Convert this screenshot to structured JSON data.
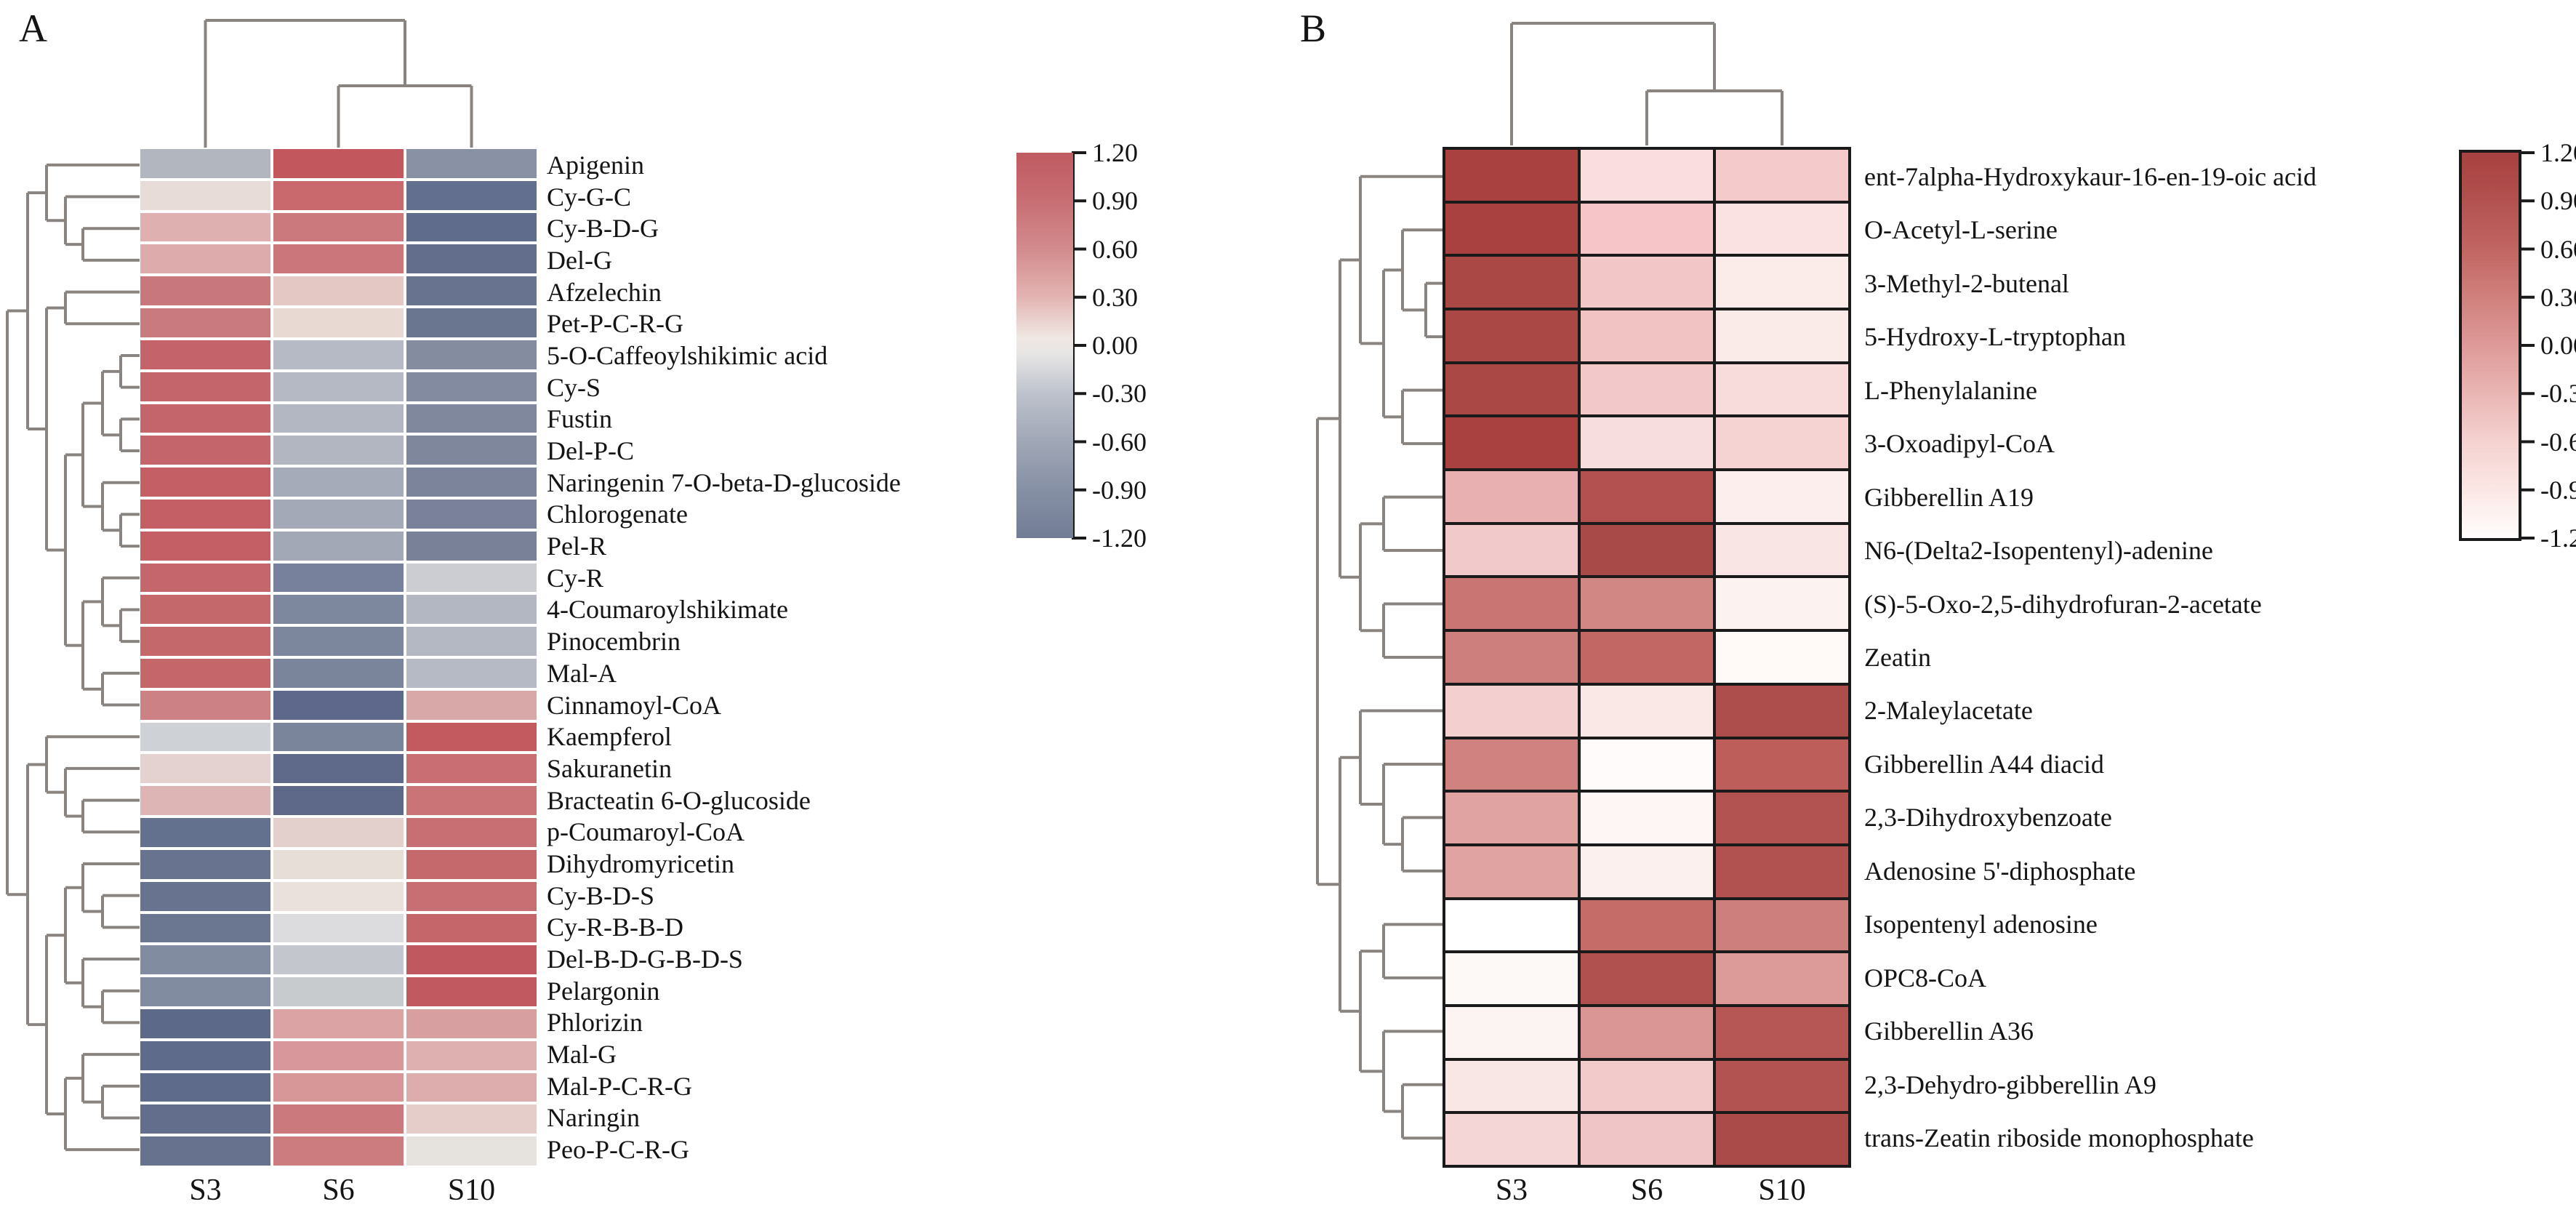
{
  "figure": {
    "background": "#ffffff",
    "text_color": "#141414",
    "dendrogram_color": "#8a8481",
    "panel_a_letter": "A",
    "panel_b_letter": "B"
  },
  "chart_data": [
    {
      "type": "heatmap",
      "panel_label": "A",
      "columns": [
        "S3",
        "S6",
        "S10"
      ],
      "rows": [
        "Apigenin",
        "Cy-G-C",
        "Cy-B-D-G",
        "Del-G",
        "Afzelechin",
        "Pet-P-C-R-G",
        "5-O-Caffeoylshikimic acid",
        "Cy-S",
        "Fustin",
        "Del-P-C",
        "Naringenin 7-O-beta-D-glucoside",
        "Chlorogenate",
        "Pel-R",
        "Cy-R",
        "4-Coumaroylshikimate",
        "Pinocembrin",
        "Mal-A",
        "Cinnamoyl-CoA",
        "Kaempferol",
        "Sakuranetin",
        "Bracteatin 6-O-glucoside",
        "p-Coumaroyl-CoA",
        "Dihydromyricetin",
        "Cy-B-D-S",
        "Cy-R-B-B-D",
        "Del-B-D-G-B-D-S",
        "Pelargonin",
        "Phlorizin",
        "Mal-G",
        "Mal-P-C-R-G",
        "Naringin",
        "Peo-P-C-R-G"
      ],
      "values": [
        [
          -0.45,
          1.15,
          -0.75
        ],
        [
          0.1,
          0.95,
          -1.1
        ],
        [
          0.45,
          0.7,
          -1.15
        ],
        [
          0.5,
          0.75,
          -1.1
        ],
        [
          0.75,
          0.25,
          -1.05
        ],
        [
          0.75,
          0.1,
          -1.0
        ],
        [
          1.0,
          -0.4,
          -0.8
        ],
        [
          1.0,
          -0.4,
          -0.8
        ],
        [
          1.0,
          -0.45,
          -0.75
        ],
        [
          1.0,
          -0.45,
          -0.75
        ],
        [
          1.05,
          -0.55,
          -0.7
        ],
        [
          1.05,
          -0.55,
          -0.7
        ],
        [
          1.05,
          -0.55,
          -0.7
        ],
        [
          1.0,
          -0.85,
          -0.2
        ],
        [
          1.0,
          -0.75,
          -0.45
        ],
        [
          1.0,
          -0.75,
          -0.45
        ],
        [
          1.0,
          -0.8,
          -0.4
        ],
        [
          0.75,
          -1.1,
          0.45
        ],
        [
          -0.3,
          -0.8,
          1.2
        ],
        [
          0.15,
          -1.05,
          0.85
        ],
        [
          0.4,
          -1.1,
          0.8
        ],
        [
          -1.0,
          0.2,
          0.85
        ],
        [
          -0.9,
          0.1,
          0.95
        ],
        [
          -0.9,
          0.05,
          0.9
        ],
        [
          -0.85,
          -0.15,
          0.95
        ],
        [
          -0.6,
          -0.4,
          1.15
        ],
        [
          -0.6,
          -0.45,
          1.15
        ],
        [
          -1.1,
          0.5,
          0.45
        ],
        [
          -1.05,
          0.65,
          0.4
        ],
        [
          -1.05,
          0.65,
          0.45
        ],
        [
          -1.0,
          0.8,
          0.15
        ],
        [
          -0.9,
          0.8,
          0.05
        ]
      ],
      "cell_colors": [
        [
          "#b2b6bf",
          "#c2585e",
          "#8992a4"
        ],
        [
          "#e7dcd7",
          "#c9696e",
          "#636f8e"
        ],
        [
          "#dfb0b0",
          "#cc797d",
          "#606c8b"
        ],
        [
          "#ddabab",
          "#cb767a",
          "#626e8c"
        ],
        [
          "#c8787c",
          "#e3c8c4",
          "#67738f"
        ],
        [
          "#c87a7e",
          "#e9d9d3",
          "#6a768f"
        ],
        [
          "#c4646a",
          "#b6bac4",
          "#848da0"
        ],
        [
          "#c4656b",
          "#b5b9c3",
          "#828ba0"
        ],
        [
          "#c4656b",
          "#b3b7c2",
          "#7f889d"
        ],
        [
          "#c4656b",
          "#b2b6c1",
          "#7e879c"
        ],
        [
          "#c35f65",
          "#a6abb9",
          "#7b849a"
        ],
        [
          "#c35f65",
          "#a4a9b8",
          "#79829a"
        ],
        [
          "#c35f65",
          "#a3a8b7",
          "#788198"
        ],
        [
          "#c4666b",
          "#77819b",
          "#ccccd3"
        ],
        [
          "#c5686c",
          "#7d879e",
          "#b3b7c2"
        ],
        [
          "#c5686c",
          "#7c869d",
          "#b4b8c3"
        ],
        [
          "#c4666a",
          "#7a849b",
          "#b6bac4"
        ],
        [
          "#cc8185",
          "#5d688a",
          "#d8a8a8"
        ],
        [
          "#ced2d6",
          "#7a849b",
          "#c35a60"
        ],
        [
          "#e4d2d0",
          "#5f6a8b",
          "#c96f73"
        ],
        [
          "#ddb5b4",
          "#5e698a",
          "#cb7478"
        ],
        [
          "#63718f",
          "#e3cfcc",
          "#c76f73"
        ],
        [
          "#68748f",
          "#e7ded8",
          "#c5696d"
        ],
        [
          "#68748f",
          "#eae0dc",
          "#c76f73"
        ],
        [
          "#6b7790",
          "#dcdcde",
          "#c5666b"
        ],
        [
          "#828ca1",
          "#c3c6cc",
          "#bf585f"
        ],
        [
          "#828ca1",
          "#c8cbce",
          "#c05a60"
        ],
        [
          "#5d6988",
          "#dba3a4",
          "#d89fa0"
        ],
        [
          "#5f6b8a",
          "#d8989b",
          "#dfb0b0"
        ],
        [
          "#5f6b8a",
          "#d79799",
          "#ddacad"
        ],
        [
          "#626e8c",
          "#cc797d",
          "#e5cdca"
        ],
        [
          "#67738e",
          "#cc7b7f",
          "#e6e2dd"
        ]
      ],
      "value_range": [
        -1.2,
        1.2
      ],
      "colorbar_ticks": [
        "1.20",
        "0.90",
        "0.60",
        "0.30",
        "0.00",
        "-0.30",
        "-0.60",
        "-0.90",
        "-1.20"
      ],
      "colorbar_gradient": [
        [
          "#bf5b61",
          0
        ],
        [
          "#c76d72",
          12
        ],
        [
          "#d28b8d",
          25
        ],
        [
          "#e2b2b0",
          37
        ],
        [
          "#efe7e3",
          48
        ],
        [
          "#e7e6e5",
          52
        ],
        [
          "#bcc1cb",
          63
        ],
        [
          "#a0a7b6",
          75
        ],
        [
          "#8791a5",
          87
        ],
        [
          "#717c96",
          100
        ]
      ],
      "row_tree": [
        0,
        [
          1,
          [
            2,
            0,
            [
              3,
              1,
              [
                4,
                2,
                3
              ]
            ]
          ],
          [
            2,
            [
              3,
              4,
              5
            ],
            [
              3,
              [
                4,
                [
                  5,
                  [
                    6,
                    6,
                    7
                  ],
                  [
                    6,
                    8,
                    9
                  ]
                ],
                [
                  5,
                  10,
                  [
                    6,
                    11,
                    12
                  ]
                ]
              ],
              [
                4,
                [
                  5,
                  13,
                  [
                    6,
                    14,
                    15
                  ]
                ],
                [
                  5,
                  16,
                  17
                ]
              ]
            ]
          ]
        ],
        [
          1,
          [
            2,
            18,
            [
              3,
              19,
              [
                4,
                20,
                21
              ]
            ]
          ],
          [
            2,
            [
              3,
              [
                4,
                22,
                [
                  5,
                  23,
                  24
                ]
              ],
              [
                4,
                25,
                [
                  5,
                  26,
                  27
                ]
              ]
            ],
            [
              3,
              [
                4,
                28,
                [
                  5,
                  29,
                  30
                ]
              ],
              31
            ]
          ]
        ]
      ],
      "row_tree_levels": [
        10,
        38,
        64,
        90,
        114,
        141,
        166
      ],
      "col_tree": [
        0,
        0,
        [
          1,
          1,
          2
        ]
      ],
      "col_tree_levels": [
        28,
        118
      ]
    },
    {
      "type": "heatmap",
      "panel_label": "B",
      "columns": [
        "S3",
        "S6",
        "S10"
      ],
      "rows": [
        "ent-7alpha-Hydroxykaur-16-en-19-oic acid",
        "O-Acetyl-L-serine",
        "3-Methyl-2-butenal",
        "5-Hydroxy-L-tryptophan",
        "L-Phenylalanine",
        "3-Oxoadipyl-CoA",
        "Gibberellin A19",
        "N6-(Delta2-Isopentenyl)-adenine",
        "(S)-5-Oxo-2,5-dihydrofuran-2-acetate",
        "Zeatin",
        "2-Maleylacetate",
        "Gibberellin A44 diacid",
        "2,3-Dihydroxybenzoate",
        "Adenosine 5'-diphosphate",
        "Isopentenyl adenosine",
        "OPC8-CoA",
        "Gibberellin A36",
        "2,3-Dehydro-gibberellin A9",
        "trans-Zeatin riboside monophosphate"
      ],
      "values": [
        [
          1.15,
          -0.7,
          -0.5
        ],
        [
          1.15,
          -0.5,
          -0.75
        ],
        [
          1.1,
          -0.5,
          -0.85
        ],
        [
          1.1,
          -0.5,
          -0.8
        ],
        [
          1.1,
          -0.45,
          -0.65
        ],
        [
          1.15,
          -0.7,
          -0.6
        ],
        [
          0.25,
          1.0,
          -0.9
        ],
        [
          -0.45,
          1.1,
          -0.8
        ],
        [
          0.55,
          0.35,
          -1.05
        ],
        [
          0.45,
          0.65,
          -1.15
        ],
        [
          -0.4,
          -0.75,
          1.1
        ],
        [
          0.4,
          -1.15,
          0.8
        ],
        [
          0.1,
          -1.1,
          0.95
        ],
        [
          0.1,
          -0.95,
          0.95
        ],
        [
          -1.2,
          0.6,
          0.4
        ],
        [
          -1.15,
          0.95,
          0.2
        ],
        [
          -1.1,
          0.25,
          0.9
        ],
        [
          -0.8,
          -0.45,
          0.95
        ],
        [
          -0.6,
          -0.5,
          1.1
        ]
      ],
      "cell_colors": [
        [
          "#a8413f",
          "#fadddf",
          "#f4caca"
        ],
        [
          "#a8413f",
          "#f6c5c8",
          "#f9e2e1"
        ],
        [
          "#a94844",
          "#f2c6c6",
          "#fbecea"
        ],
        [
          "#a94844",
          "#f1c3c3",
          "#faeae8"
        ],
        [
          "#a94844",
          "#f2c8c8",
          "#f7dcdb"
        ],
        [
          "#a8413f",
          "#f7dddd",
          "#f5d3d2"
        ],
        [
          "#e8b0b0",
          "#b25150",
          "#fbeeec"
        ],
        [
          "#f2c9ca",
          "#a84a47",
          "#f9e5e4"
        ],
        [
          "#c97573",
          "#d18784",
          "#fcf3f1"
        ],
        [
          "#cd7f7d",
          "#c26764",
          "#fffaf7"
        ],
        [
          "#f4cfd0",
          "#fae8e7",
          "#ae4e4c"
        ],
        [
          "#d08280",
          "#fefbfa",
          "#bd5e5b"
        ],
        [
          "#e0a3a2",
          "#fdf6f4",
          "#b25351"
        ],
        [
          "#e0a3a2",
          "#fbf0ee",
          "#b15250"
        ],
        [
          "#ffffff",
          "#c56c69",
          "#cd7f7d"
        ],
        [
          "#fdf9f7",
          "#b05150",
          "#dc9b99"
        ],
        [
          "#fcf4f2",
          "#da9694",
          "#b65755"
        ],
        [
          "#f9e7e6",
          "#f2caca",
          "#b25351"
        ],
        [
          "#f5d6d6",
          "#f0c5c5",
          "#ab4b49"
        ]
      ],
      "value_range": [
        -1.2,
        1.2
      ],
      "colorbar_ticks": [
        "1.20",
        "0.90",
        "0.60",
        "0.30",
        "0.00",
        "-0.30",
        "-0.60",
        "-0.90",
        "-1.20"
      ],
      "colorbar_gradient": [
        [
          "#a8413f",
          0
        ],
        [
          "#b25150",
          12
        ],
        [
          "#c16562",
          25
        ],
        [
          "#d07f7c",
          37
        ],
        [
          "#dd9a98",
          50
        ],
        [
          "#eab7b5",
          63
        ],
        [
          "#f4d2d0",
          75
        ],
        [
          "#fbe8e6",
          88
        ],
        [
          "#fffdfc",
          100
        ]
      ],
      "row_tree": [
        0,
        [
          1,
          [
            2,
            0,
            [
              3,
              [
                4,
                1,
                [
                  5,
                  2,
                  3
                ]
              ],
              [
                4,
                4,
                5
              ]
            ]
          ],
          [
            2,
            [
              3,
              6,
              7
            ],
            [
              3,
              8,
              9
            ]
          ]
        ],
        [
          1,
          [
            2,
            10,
            [
              3,
              11,
              [
                4,
                12,
                13
              ]
            ]
          ],
          [
            2,
            [
              3,
              14,
              15
            ],
            [
              3,
              16,
              [
                4,
                17,
                18
              ]
            ]
          ]
        ]
      ],
      "row_tree_levels": [
        1812,
        1843,
        1871,
        1903,
        1929,
        1961
      ],
      "col_tree": [
        0,
        0,
        [
          1,
          1,
          2
        ]
      ],
      "col_tree_levels": [
        32,
        125
      ]
    }
  ]
}
